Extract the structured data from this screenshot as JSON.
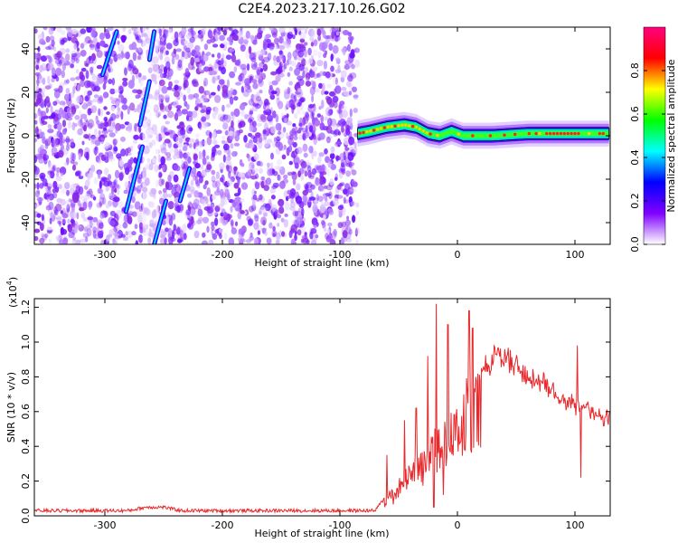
{
  "title": "C2E4.2023.217.10.26.G02",
  "chart_data": [
    {
      "type": "heatmap",
      "xlabel": "Height of straight line (km)",
      "ylabel": "Frequency (Hz)",
      "xlim": [
        -360,
        130
      ],
      "ylim": [
        -50,
        50
      ],
      "xticks": [
        -300,
        -200,
        -100,
        0,
        100
      ],
      "yticks": [
        -40,
        -20,
        0,
        20,
        40
      ],
      "colorbar": {
        "label": "Normalized spectral amplitude",
        "range": [
          0,
          1
        ],
        "ticks": [
          "0.0",
          "0.2",
          "0.4",
          "0.6",
          "0.8"
        ],
        "colors": [
          "#ffffff",
          "#8000ff",
          "#0000ff",
          "#00ffff",
          "#00ff00",
          "#ffff00",
          "#ff0000",
          "#ff0080"
        ]
      },
      "noise_region_x": [
        -360,
        -85
      ],
      "ridge": [
        {
          "x": -85,
          "y": 1
        },
        {
          "x": -75,
          "y": 2
        },
        {
          "x": -60,
          "y": 4
        },
        {
          "x": -45,
          "y": 5
        },
        {
          "x": -35,
          "y": 4
        },
        {
          "x": -25,
          "y": 1
        },
        {
          "x": -15,
          "y": 0
        },
        {
          "x": -5,
          "y": 2
        },
        {
          "x": 5,
          "y": 0
        },
        {
          "x": 30,
          "y": 0
        },
        {
          "x": 60,
          "y": 1
        },
        {
          "x": 100,
          "y": 1
        },
        {
          "x": 130,
          "y": 1
        }
      ],
      "streaks": [
        {
          "x": [
            -302,
            -290
          ],
          "y": [
            28,
            48
          ]
        },
        {
          "x": [
            -270,
            -262
          ],
          "y": [
            5,
            25
          ]
        },
        {
          "x": [
            -262,
            -258
          ],
          "y": [
            35,
            48
          ]
        },
        {
          "x": [
            -282,
            -268
          ],
          "y": [
            -35,
            -5
          ]
        },
        {
          "x": [
            -258,
            -248
          ],
          "y": [
            -50,
            -30
          ]
        },
        {
          "x": [
            -236,
            -228
          ],
          "y": [
            -30,
            -15
          ]
        }
      ]
    },
    {
      "type": "line",
      "xlabel": "Height of straight line (km)",
      "ylabel": "SNR (10 * v/v)",
      "y_multiplier": "(x10",
      "y_multiplier_exp": "4",
      "xlim": [
        -360,
        130
      ],
      "ylim": [
        0,
        1.25
      ],
      "xticks": [
        -300,
        -200,
        -100,
        0,
        100
      ],
      "yticks": [
        "0.0",
        "0.2",
        "0.4",
        "0.6",
        "0.8",
        "1.0",
        "1.2"
      ],
      "color": "#e8282b",
      "envelope": [
        {
          "x": -360,
          "y": 0.03
        },
        {
          "x": -280,
          "y": 0.03
        },
        {
          "x": -265,
          "y": 0.05
        },
        {
          "x": -250,
          "y": 0.05
        },
        {
          "x": -235,
          "y": 0.03
        },
        {
          "x": -70,
          "y": 0.03
        },
        {
          "x": -60,
          "y": 0.12
        },
        {
          "x": -50,
          "y": 0.2
        },
        {
          "x": -40,
          "y": 0.3
        },
        {
          "x": -30,
          "y": 0.4
        },
        {
          "x": -20,
          "y": 0.5
        },
        {
          "x": -10,
          "y": 0.6
        },
        {
          "x": 0,
          "y": 0.7
        },
        {
          "x": 10,
          "y": 0.8
        },
        {
          "x": 20,
          "y": 0.88
        },
        {
          "x": 35,
          "y": 0.98
        },
        {
          "x": 50,
          "y": 0.92
        },
        {
          "x": 70,
          "y": 0.82
        },
        {
          "x": 90,
          "y": 0.72
        },
        {
          "x": 110,
          "y": 0.65
        },
        {
          "x": 130,
          "y": 0.58
        }
      ],
      "spikes": [
        {
          "x": -60,
          "y": 0.35
        },
        {
          "x": -45,
          "y": 0.55
        },
        {
          "x": -35,
          "y": 0.62
        },
        {
          "x": -25,
          "y": 0.92
        },
        {
          "x": -20,
          "y": 0.95
        },
        {
          "x": -18,
          "y": 1.22
        },
        {
          "x": -12,
          "y": 0.98
        },
        {
          "x": -8,
          "y": 1.1
        },
        {
          "x": 10,
          "y": 1.18
        },
        {
          "x": 13,
          "y": 1.08
        },
        {
          "x": 102,
          "y": 0.98
        },
        {
          "x": 105,
          "y": 0.82
        }
      ],
      "dips": [
        {
          "x": -20,
          "y": 0.05
        },
        {
          "x": -12,
          "y": 0.12
        },
        {
          "x": 105,
          "y": 0.22
        }
      ]
    }
  ]
}
